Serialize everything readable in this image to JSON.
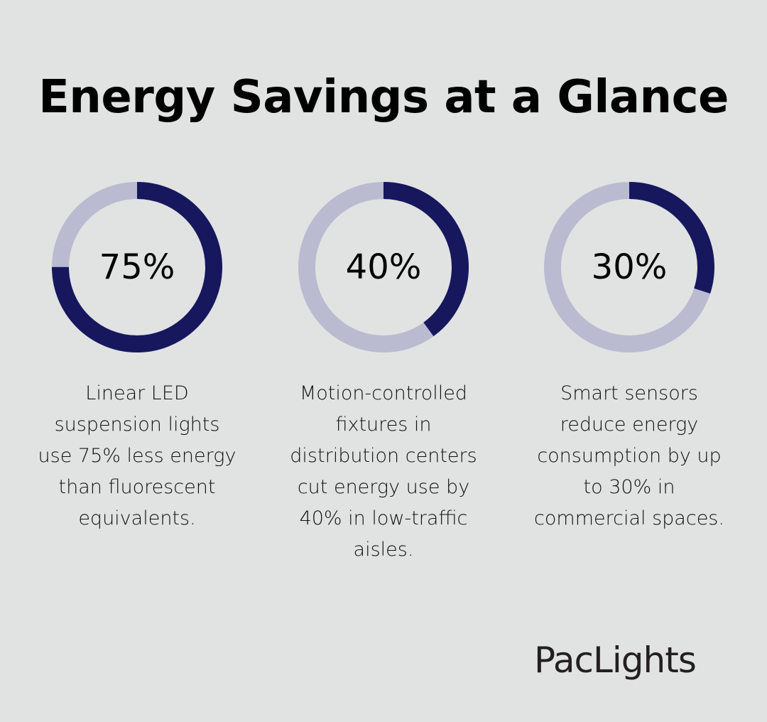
{
  "title": "Energy Savings at a Glance",
  "colors": {
    "background": "#e1e3e2",
    "filled": "#17175e",
    "remaining": "#babbd1"
  },
  "chart_data": {
    "type": "pie",
    "subtype": "donut-rings",
    "title": "Energy Savings at a Glance",
    "items": [
      {
        "label": "75%",
        "value": 75,
        "description": "Linear LED suspension lights use 75% less energy than fluorescent equivalents."
      },
      {
        "label": "40%",
        "value": 40,
        "description": "Motion-controlled fixtures in distribution centers cut energy use by 40% in low-traffic aisles."
      },
      {
        "label": "30%",
        "value": 30,
        "description": "Smart sensors reduce energy consumption by up to 30% in commercial spaces."
      }
    ]
  },
  "cards": [
    {
      "pct": "75%",
      "value": 75,
      "desc_lines": [
        "Linear LED",
        "suspension lights",
        "use 75% less energy",
        "than fluorescent",
        "equivalents."
      ]
    },
    {
      "pct": "40%",
      "value": 40,
      "desc_lines": [
        "Motion-controlled",
        "fixtures in",
        "distribution centers",
        "cut energy use by",
        "40% in low-traffic",
        "aisles."
      ]
    },
    {
      "pct": "30%",
      "value": 30,
      "desc_lines": [
        "Smart sensors",
        "reduce energy",
        "consumption by up",
        "to 30% in",
        "commercial spaces."
      ]
    }
  ],
  "logo": "PacLights"
}
